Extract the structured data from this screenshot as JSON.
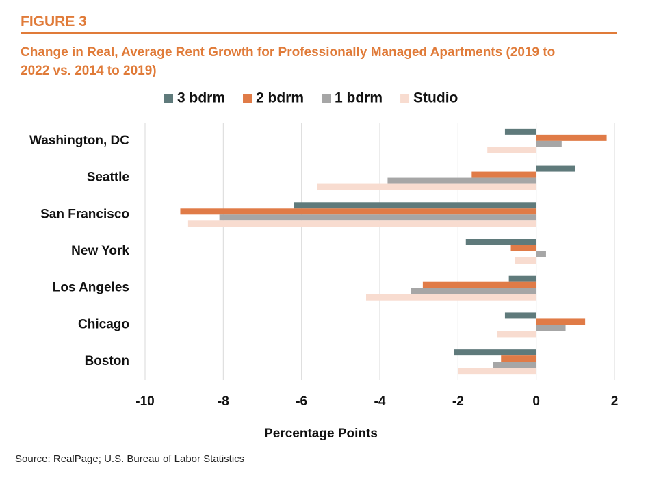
{
  "figure_label": "FIGURE 3",
  "source": "Source: RealPage; U.S. Bureau of Labor Statistics",
  "chart_data": {
    "type": "hbar",
    "title": "Change in Real, Average Rent Growth for Professionally Managed Apartments (2019 to 2022 vs. 2014 to 2019)",
    "x_label": "Percentage Points",
    "categories": [
      "Washington, DC",
      "Seattle",
      "San Francisco",
      "New York",
      "Los Angeles",
      "Chicago",
      "Boston"
    ],
    "series": [
      {
        "name": "3 bdrm",
        "color": "#5f7a7b",
        "values": [
          -0.8,
          1.0,
          -6.2,
          -1.8,
          -0.7,
          -0.8,
          -2.1
        ]
      },
      {
        "name": "2 bdrm",
        "color": "#e07b47",
        "values": [
          1.8,
          -1.65,
          -9.1,
          -0.65,
          -2.9,
          1.25,
          -0.9
        ]
      },
      {
        "name": "1 bdrm",
        "color": "#a6a6a6",
        "values": [
          0.65,
          -3.8,
          -8.1,
          0.25,
          -3.2,
          0.75,
          -1.1
        ]
      },
      {
        "name": "Studio",
        "color": "#f8dcd0",
        "values": [
          -1.25,
          -5.6,
          -8.9,
          -0.55,
          -4.35,
          -1.0,
          -2.0
        ]
      }
    ],
    "xlim": [
      -10,
      2
    ],
    "xticks": [
      -10,
      -8,
      -6,
      -4,
      -2,
      0,
      2
    ],
    "grid": true,
    "legend": "top"
  }
}
